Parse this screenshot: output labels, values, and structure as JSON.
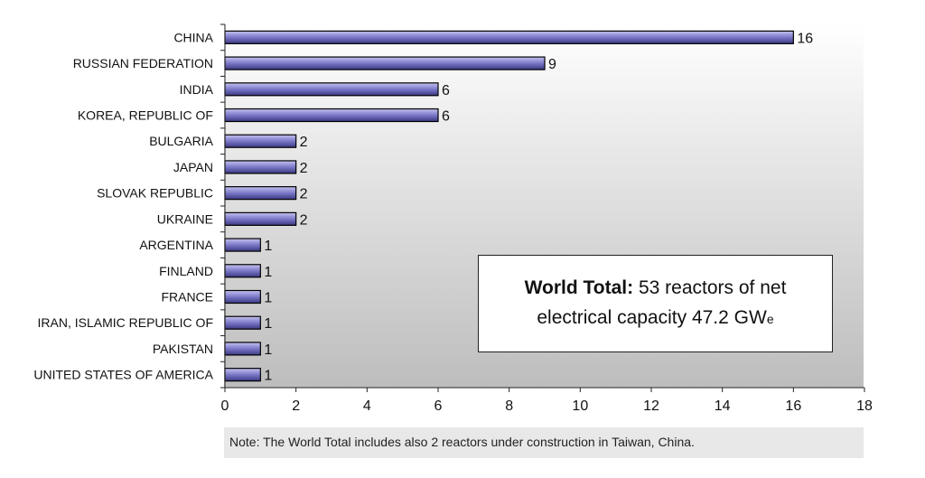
{
  "chart_data": {
    "type": "bar",
    "orientation": "horizontal",
    "categories": [
      "CHINA",
      "RUSSIAN FEDERATION",
      "INDIA",
      "KOREA, REPUBLIC OF",
      "BULGARIA",
      "JAPAN",
      "SLOVAK REPUBLIC",
      "UKRAINE",
      "ARGENTINA",
      "FINLAND",
      "FRANCE",
      "IRAN, ISLAMIC REPUBLIC OF",
      "PAKISTAN",
      "UNITED STATES OF AMERICA"
    ],
    "values": [
      16,
      9,
      6,
      6,
      2,
      2,
      2,
      2,
      1,
      1,
      1,
      1,
      1,
      1
    ],
    "xlim": [
      0,
      18
    ],
    "xticks": [
      0,
      2,
      4,
      6,
      8,
      10,
      12,
      14,
      16,
      18
    ],
    "title": "",
    "xlabel": "",
    "ylabel": "",
    "grid": false,
    "bar_color": "#7b78c8"
  },
  "annotation": {
    "bold": "World Total:",
    "line1_rest": " 53 reactors of net",
    "line2_main": "electrical capacity 47.2 GW",
    "line2_sub": "e"
  },
  "note": "Note: The World Total includes also 2 reactors under construction in Taiwan, China."
}
